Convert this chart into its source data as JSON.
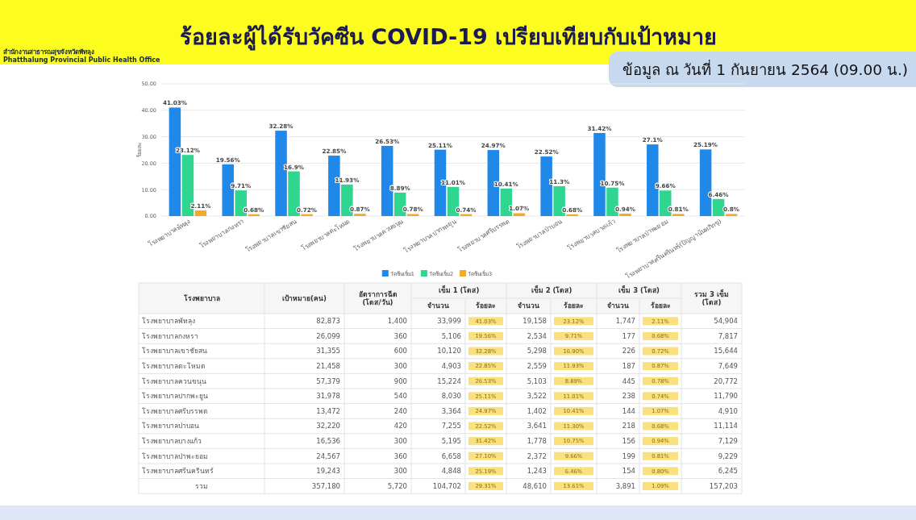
{
  "chart_data": [
    {
      "type": "bar",
      "title": "ร้อยละผู้ได้รับวัคซีน COVID-19 เปรียบเทียบกับเป้าหมาย",
      "subtitle": "ข้อมูล ณ วันที่ 1 กันยายน 2564 (09.00 น.)",
      "ylabel": "ร้อยละ",
      "annotations": [
        "สำนักงานสาธารณสุขจังหวัดพัทลุง",
        "Phatthalung Provincial Public Health Office"
      ],
      "categories": [
        "โรงพยาบาลพัทลุง",
        "โรงพยาบาลกงหรา",
        "โรงพยาบาลเขาชัยสน",
        "โรงพยาบาลตะโหมด",
        "โรงพยาบาลควนขนุน",
        "โรงพยาบาลปากพะยูน",
        "โรงพยาบาลศรีบรรพต",
        "โรงพยาบาลป่าบอน",
        "โรงพยาบาลบางแก้ว",
        "โรงพยาบาลป่าพะยอม",
        "โรงพยาบาลศรีนครินทร์(ปัญญานันทภิกขุ)"
      ],
      "series": [
        {
          "name": "วัคซีนเข็ม1",
          "color": "#1f88e8",
          "values": [
            41.03,
            19.56,
            32.28,
            22.85,
            26.53,
            25.11,
            24.97,
            22.52,
            31.42,
            27.1,
            25.19
          ],
          "value_labels": [
            "41.03%",
            "19.56%",
            "32.28%",
            "22.85%",
            "26.53%",
            "25.11%",
            "24.97%",
            "22.52%",
            "31.42%",
            "27.1%",
            "25.19%"
          ]
        },
        {
          "name": "วัคซีนเข็ม2",
          "color": "#2fd690",
          "values": [
            23.12,
            9.71,
            16.9,
            11.93,
            8.89,
            11.01,
            10.41,
            11.3,
            10.75,
            9.66,
            6.46
          ],
          "value_labels": [
            "23.12%",
            "9.71%",
            "16.9%",
            "11.93%",
            "8.89%",
            "11.01%",
            "10.41%",
            "11.3%",
            "10.75%",
            "9.66%",
            "6.46%"
          ]
        },
        {
          "name": "วัคซีนเข็ม3",
          "color": "#f3aa24",
          "values": [
            2.11,
            0.68,
            0.72,
            0.87,
            0.78,
            0.74,
            1.07,
            0.68,
            0.94,
            0.81,
            0.8
          ],
          "value_labels": [
            "2.11%",
            "0.68%",
            "0.72%",
            "0.87%",
            "0.78%",
            "0.74%",
            "1.07%",
            "0.68%",
            "0.94%",
            "0.81%",
            "0.8%"
          ]
        }
      ],
      "ylim": [
        0,
        50
      ],
      "yticks": [
        {
          "value": 0,
          "label": "0.00"
        },
        {
          "value": 10,
          "label": "10.00"
        },
        {
          "value": 20,
          "label": "20.00"
        },
        {
          "value": 30,
          "label": "30.00"
        },
        {
          "value": 40,
          "label": "40.00"
        },
        {
          "value": 50,
          "label": "50.00"
        }
      ],
      "grid": "y",
      "legend": "bottom"
    },
    {
      "type": "other",
      "xlabel": "โรงพยาบาล",
      "annotations": [
        "เข็ม 1 (โดส)",
        "เข็ม 2 (โดส)",
        "เข็ม 3 (โดส)"
      ],
      "categories": [
        "โรงพยาบาลพัทลุง",
        "โรงพยาบาลกงหรา",
        "โรงพยาบาลเขาชัยสน",
        "โรงพยาบาลตะโหมด",
        "โรงพยาบาลควนขนุน",
        "โรงพยาบาลปากพะยูน",
        "โรงพยาบาลศรีบรรพต",
        "โรงพยาบาลป่าบอน",
        "โรงพยาบาลบางแก้ว",
        "โรงพยาบาลป่าพะยอม",
        "โรงพยาบาลศรีนครินทร์",
        "รวม"
      ],
      "series": [
        {
          "name": "เป้าหมาย(คน)",
          "values": [
            82873,
            26099,
            31355,
            21458,
            57379,
            31978,
            13472,
            32220,
            16536,
            24567,
            19243,
            357180
          ],
          "value_labels": [
            "82,873",
            "26,099",
            "31,355",
            "21,458",
            "57,379",
            "31,978",
            "13,472",
            "32,220",
            "16,536",
            "24,567",
            "19,243",
            "357,180"
          ]
        },
        {
          "name": "อัตราการฉีด (โดส/วัน)",
          "values": [
            1400,
            360,
            600,
            300,
            900,
            540,
            240,
            420,
            300,
            360,
            300,
            5720
          ],
          "value_labels": [
            "1,400",
            "360",
            "600",
            "300",
            "900",
            "540",
            "240",
            "420",
            "300",
            "360",
            "300",
            "5,720"
          ]
        },
        {
          "name": "จำนวน",
          "values": [
            33999,
            5106,
            10120,
            4903,
            15224,
            8030,
            3364,
            7255,
            5195,
            6658,
            4848,
            104702
          ],
          "value_labels": [
            "33,999",
            "5,106",
            "10,120",
            "4,903",
            "15,224",
            "8,030",
            "3,364",
            "7,255",
            "5,195",
            "6,658",
            "4,848",
            "104,702"
          ]
        },
        {
          "name": "ร้อยละ",
          "color": "#fae17f",
          "values": [
            41.03,
            19.56,
            32.28,
            22.85,
            26.53,
            25.11,
            24.97,
            22.52,
            31.42,
            27.1,
            25.19,
            29.31
          ],
          "value_labels": [
            "41.03%",
            "19.56%",
            "32.28%",
            "22.85%",
            "26.53%",
            "25.11%",
            "24.97%",
            "22.52%",
            "31.42%",
            "27.10%",
            "25.19%",
            "29.31%"
          ]
        },
        {
          "name": "จำนวน",
          "values": [
            19158,
            2534,
            5298,
            2559,
            5103,
            3522,
            1402,
            3641,
            1778,
            2372,
            1243,
            48610
          ],
          "value_labels": [
            "19,158",
            "2,534",
            "5,298",
            "2,559",
            "5,103",
            "3,522",
            "1,402",
            "3,641",
            "1,778",
            "2,372",
            "1,243",
            "48,610"
          ]
        },
        {
          "name": "ร้อยละ",
          "color": "#fae17f",
          "values": [
            23.12,
            9.71,
            16.9,
            11.93,
            8.89,
            11.01,
            10.41,
            11.3,
            10.75,
            9.66,
            6.46,
            13.61
          ],
          "value_labels": [
            "23.12%",
            "9.71%",
            "16.90%",
            "11.93%",
            "8.89%",
            "11.01%",
            "10.41%",
            "11.30%",
            "10.75%",
            "9.66%",
            "6.46%",
            "13.61%"
          ]
        },
        {
          "name": "จำนวน",
          "values": [
            1747,
            177,
            226,
            187,
            445,
            238,
            144,
            218,
            156,
            199,
            154,
            3891
          ],
          "value_labels": [
            "1,747",
            "177",
            "226",
            "187",
            "445",
            "238",
            "144",
            "218",
            "156",
            "199",
            "154",
            "3,891"
          ]
        },
        {
          "name": "ร้อยละ",
          "color": "#fae17f",
          "values": [
            2.11,
            0.68,
            0.72,
            0.87,
            0.78,
            0.74,
            1.07,
            0.68,
            0.94,
            0.81,
            0.8,
            1.09
          ],
          "value_labels": [
            "2.11%",
            "0.68%",
            "0.72%",
            "0.87%",
            "0.78%",
            "0.74%",
            "1.07%",
            "0.68%",
            "0.94%",
            "0.81%",
            "0.80%",
            "1.09%"
          ]
        },
        {
          "name": "รวม 3 เข็ม (โดส)",
          "values": [
            54904,
            7817,
            15644,
            7649,
            20772,
            11790,
            4910,
            11114,
            7129,
            9229,
            6245,
            157203
          ],
          "value_labels": [
            "54,904",
            "7,817",
            "15,644",
            "7,649",
            "20,772",
            "11,790",
            "4,910",
            "11,114",
            "7,129",
            "9,229",
            "6,245",
            "157,203"
          ]
        }
      ]
    }
  ]
}
